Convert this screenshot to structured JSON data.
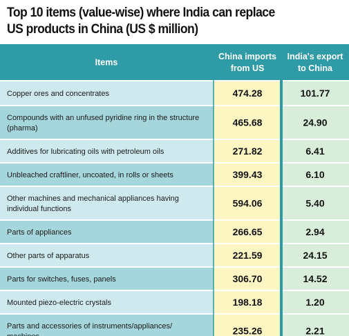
{
  "colors": {
    "header_bg": "#2e9ba6",
    "header_text": "#ffffff",
    "row_light": "#cfeaee",
    "row_dark": "#a5d6dc",
    "china_col": "#fdf6c3",
    "india_col": "#d8eeda",
    "separator": "#ffffff",
    "divider": "#2e9ba6"
  },
  "chart_data": {
    "type": "table",
    "title": "Top 10 items (value-wise) where India can replace\nUS products in China (US $ million)",
    "columns": [
      "Items",
      "China imports\nfrom US",
      "India's export\nto China"
    ],
    "rows": [
      {
        "item": "Copper ores and concentrates",
        "china": "474.28",
        "india": "101.77"
      },
      {
        "item": "Compounds with an unfused pyridine ring in the structure\n(pharma)",
        "china": "465.68",
        "india": "24.90"
      },
      {
        "item": "Additives for lubricating oils with petroleum oils",
        "china": "271.82",
        "india": "6.41"
      },
      {
        "item": "Unbleached craftliner, uncoated, in rolls or sheets",
        "china": "399.43",
        "india": "6.10"
      },
      {
        "item": "Other machines and mechanical appliances having\nindividual functions",
        "china": "594.06",
        "india": "5.40"
      },
      {
        "item": "Parts of appliances",
        "china": "266.65",
        "india": "2.94"
      },
      {
        "item": "Other parts of apparatus",
        "china": "221.59",
        "india": "24.15"
      },
      {
        "item": "Parts for switches, fuses, panels",
        "china": "306.70",
        "india": "14.52"
      },
      {
        "item": "Mounted piezo-electric crystals",
        "china": "198.18",
        "india": "1.20"
      },
      {
        "item": "Parts and accessories of instruments/appliances/\nmachines",
        "china": "235.26",
        "india": "2.21"
      }
    ]
  }
}
